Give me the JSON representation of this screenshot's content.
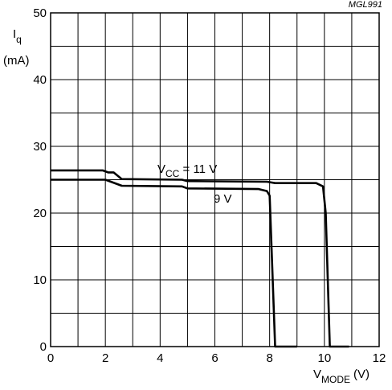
{
  "figure_code": "MGL991",
  "chart_data": {
    "type": "line",
    "ylabel": {
      "symbol": "I",
      "subscript": "q",
      "unit": "(mA)"
    },
    "xlabel": {
      "symbol": "V",
      "subscript": "MODE",
      "unit": "(V)"
    },
    "xlim": [
      0,
      12
    ],
    "ylim": [
      0,
      50
    ],
    "x_ticks": [
      "0",
      "2",
      "4",
      "6",
      "8",
      "10",
      "12"
    ],
    "y_ticks": [
      "0",
      "10",
      "20",
      "30",
      "40",
      "50"
    ],
    "grid": true,
    "series": [
      {
        "name_parts": {
          "prefix": "V",
          "subscript": "CC",
          "suffix": " = 11 V"
        },
        "points": [
          [
            0,
            26.4
          ],
          [
            1.9,
            26.4
          ],
          [
            2.1,
            26.1
          ],
          [
            2.3,
            26.1
          ],
          [
            2.6,
            25.1
          ],
          [
            4.8,
            25.0
          ],
          [
            5.0,
            24.8
          ],
          [
            7.9,
            24.7
          ],
          [
            8.2,
            24.5
          ],
          [
            9.7,
            24.5
          ],
          [
            9.95,
            24.0
          ],
          [
            10.05,
            20.0
          ],
          [
            10.2,
            0.0
          ],
          [
            10.9,
            0.0
          ]
        ]
      },
      {
        "name_parts": {
          "prefix": "",
          "subscript": "",
          "suffix": "9 V"
        },
        "points": [
          [
            0,
            25.0
          ],
          [
            2.0,
            25.0
          ],
          [
            2.6,
            24.1
          ],
          [
            4.8,
            24.0
          ],
          [
            5.0,
            23.7
          ],
          [
            7.6,
            23.6
          ],
          [
            7.9,
            23.3
          ],
          [
            8.0,
            22.6
          ],
          [
            8.2,
            0.0
          ],
          [
            9.0,
            0.0
          ]
        ]
      }
    ]
  }
}
